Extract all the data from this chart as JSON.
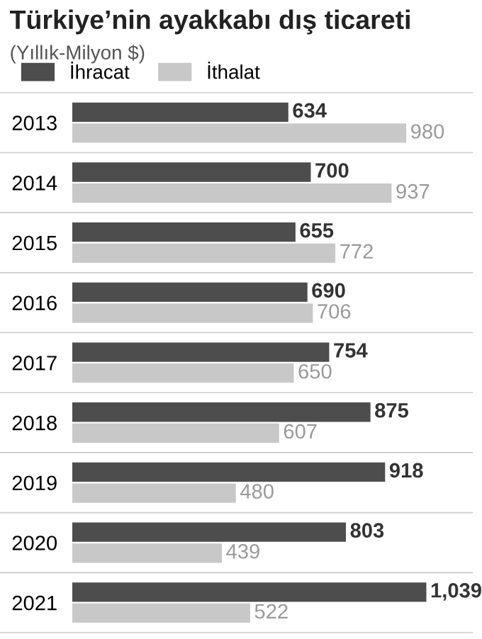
{
  "chart_data": {
    "type": "bar",
    "orientation": "horizontal",
    "title": "Türkiye’nin ayakkabı dış ticareti",
    "subtitle": "(Yıllık-Milyon $)",
    "categories": [
      "2013",
      "2014",
      "2015",
      "2016",
      "2017",
      "2018",
      "2019",
      "2020",
      "2021"
    ],
    "series": [
      {
        "name": "İhracat",
        "color": "#4d4d4d",
        "values": [
          634,
          700,
          655,
          690,
          754,
          875,
          918,
          803,
          1039
        ],
        "value_labels": [
          "634",
          "700",
          "655",
          "690",
          "754",
          "875",
          "918",
          "803",
          "1,039"
        ]
      },
      {
        "name": "İthalat",
        "color": "#c8c8c8",
        "values": [
          980,
          937,
          772,
          706,
          650,
          607,
          480,
          439,
          522
        ],
        "value_labels": [
          "980",
          "937",
          "772",
          "706",
          "650",
          "607",
          "480",
          "439",
          "522"
        ]
      }
    ],
    "legend": "top left",
    "tick_labels": "y",
    "grid": false
  }
}
